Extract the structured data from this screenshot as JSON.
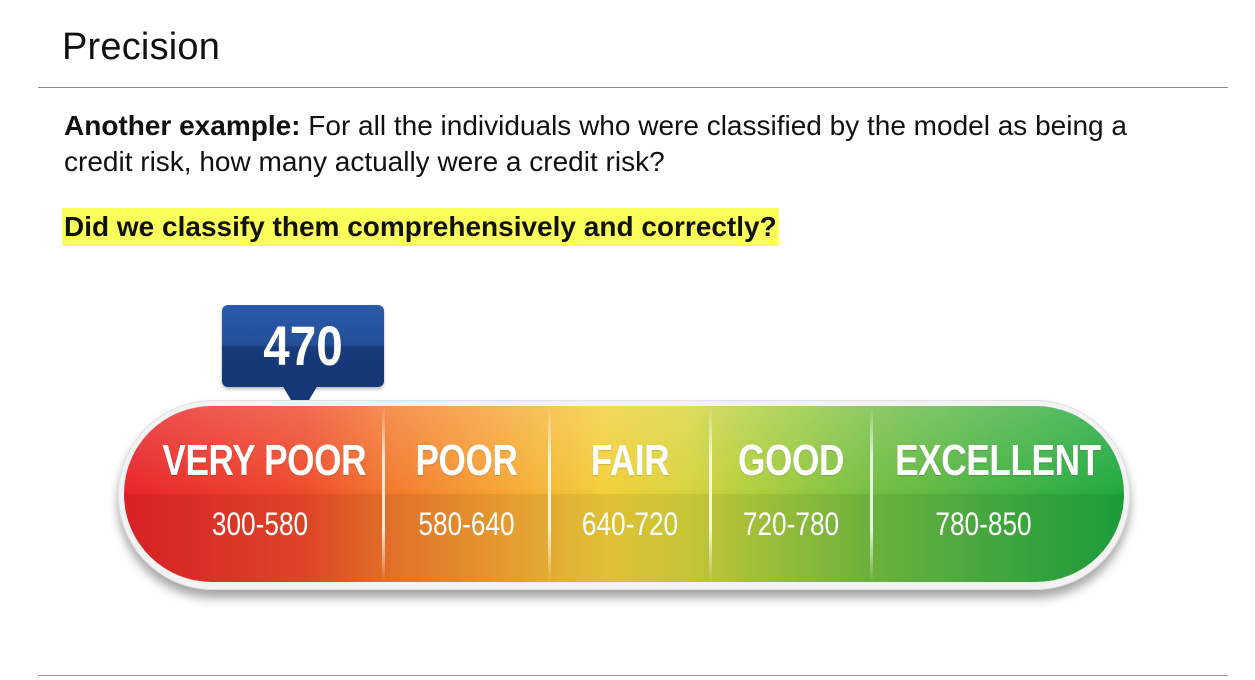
{
  "slide": {
    "title": "Precision",
    "body_lead": "Another example:",
    "body_text": " For all the individuals who were classified by the model as being a credit risk, how many actually were a credit risk?",
    "highlight": "Did we classify them comprehensively and correctly?"
  },
  "credit_gauge": {
    "score": "470",
    "segments": [
      {
        "label": "VERY POOR",
        "range": "300-580"
      },
      {
        "label": "POOR",
        "range": "580-640"
      },
      {
        "label": "FAIR",
        "range": "640-720"
      },
      {
        "label": "GOOD",
        "range": "720-780"
      },
      {
        "label": "EXCELLENT",
        "range": "780-850"
      }
    ],
    "colors": {
      "very_poor": "#e8232a",
      "poor": "#f37a2c",
      "fair": "#f2cf39",
      "good": "#77bf42",
      "excellent": "#1ea83f",
      "marker": "#1f4a8f",
      "highlight": "#fbff5a"
    }
  }
}
